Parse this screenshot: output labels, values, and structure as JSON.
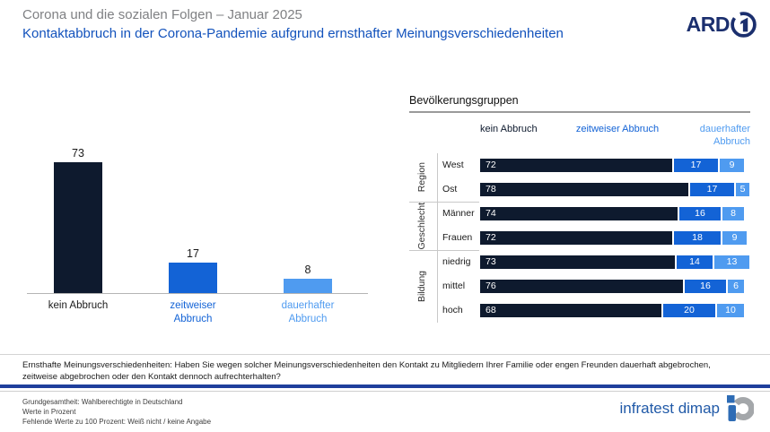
{
  "header": {
    "pretitle": "Corona und die sozialen Folgen – Januar 2025",
    "title": "Kontaktabbruch in der Corona-Pandemie aufgrund ernsthafter Meinungsverschiedenheiten",
    "ard_logo": "ARD"
  },
  "colors": {
    "kein_abbruch": "#0e1a2e",
    "zeitweiser_abbruch": "#1363d6",
    "dauerhafter_abbruch": "#4f9bf0",
    "pretitle_gray": "#7f8083",
    "title_blue": "#1252bc",
    "divider_blue": "#1f3f9c",
    "ard_navy": "#1b2f6e",
    "infratest_blue": "#215aa8",
    "mark_gray": "#a4a7aa"
  },
  "chart_data": [
    {
      "type": "bar",
      "categories": [
        "kein Abbruch",
        "zeitweiser Abbruch",
        "dauerhafter Abbruch"
      ],
      "values": [
        73,
        17,
        8
      ],
      "ylim": [
        0,
        100
      ],
      "bar_colors": [
        "#0e1a2e",
        "#1363d6",
        "#4f9bf0"
      ],
      "label_colors": [
        "#1a1a1a",
        "#1363d6",
        "#4f9bf0"
      ],
      "grid": false,
      "value_labels": true
    },
    {
      "type": "stacked-bar-horizontal",
      "title": "Bevölkerungsgruppen",
      "xlim": [
        0,
        100
      ],
      "series": [
        {
          "name": "kein Abbruch",
          "color": "#0e1a2e"
        },
        {
          "name": "zeitweiser Abbruch",
          "color": "#1363d6"
        },
        {
          "name": "dauerhafter Abbruch",
          "color": "#4f9bf0"
        }
      ],
      "groups": [
        {
          "name": "Region",
          "rows": [
            {
              "label": "West",
              "values": [
                72,
                17,
                9
              ]
            },
            {
              "label": "Ost",
              "values": [
                78,
                17,
                5
              ]
            }
          ]
        },
        {
          "name": "Geschlecht",
          "rows": [
            {
              "label": "Männer",
              "values": [
                74,
                16,
                8
              ]
            },
            {
              "label": "Frauen",
              "values": [
                72,
                18,
                9
              ]
            }
          ]
        },
        {
          "name": "Bildung",
          "rows": [
            {
              "label": "niedrig",
              "values": [
                73,
                14,
                13
              ]
            },
            {
              "label": "mittel",
              "values": [
                76,
                16,
                6
              ]
            },
            {
              "label": "hoch",
              "values": [
                68,
                20,
                10
              ]
            }
          ]
        }
      ]
    }
  ],
  "footer": {
    "question": "Ernsthafte Meinungsverschiedenheiten: Haben Sie wegen solcher Meinungsverschiedenheiten den Kontakt zu Mitgliedern Ihrer Familie oder engen Freunden dauerhaft abgebrochen, zeitweise abgebrochen oder den Kontakt dennoch aufrechterhalten?",
    "notes": [
      "Grundgesamtheit: Wahlberechtigte in Deutschland",
      "Werte in Prozent",
      "Fehlende Werte zu 100 Prozent: Weiß nicht / keine Angabe"
    ],
    "source": "infratest dimap"
  }
}
